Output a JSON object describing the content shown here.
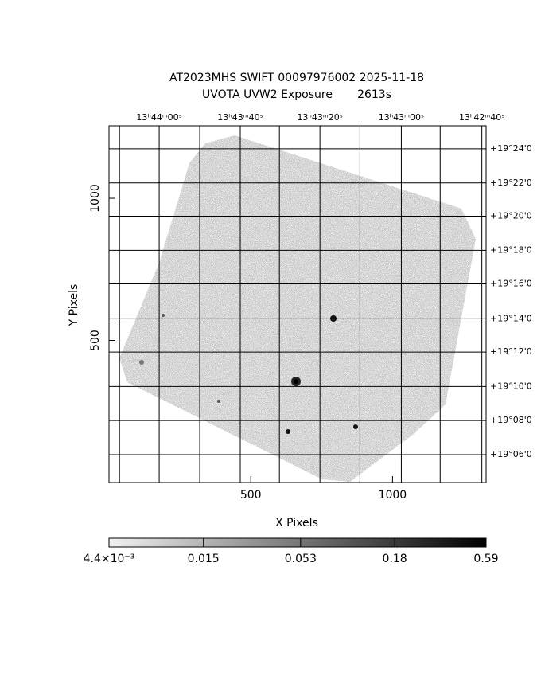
{
  "chart_data": {
    "type": "image",
    "title": "AT2023MHS SWIFT 00097976002 2025-11-18",
    "subtitle": "UVOTA UVW2 Exposure       2613s",
    "x_label": "X Pixels",
    "y_label": "Y Pixels",
    "xlim": [
      0,
      1330
    ],
    "ylim": [
      0,
      1255
    ],
    "xticks": [
      500,
      1000
    ],
    "yticks": [
      500,
      1000
    ],
    "x2ticks": [
      {
        "value": 177,
        "label": "13ʰ44ᵐ00ˢ"
      },
      {
        "value": 463,
        "label": "13ʰ43ᵐ40ˢ"
      },
      {
        "value": 744,
        "label": "13ʰ43ᵐ20ˢ"
      },
      {
        "value": 1031,
        "label": "13ʰ43ᵐ00ˢ"
      },
      {
        "value": 1315,
        "label": "13ʰ42ᵐ40ˢ"
      }
    ],
    "x2grid": [
      37,
      320,
      601,
      885,
      1168
    ],
    "y2ticks": [
      {
        "value": 1174,
        "label": "+19°24'0"
      },
      {
        "value": 1054,
        "label": "+19°22'0"
      },
      {
        "value": 937,
        "label": "+19°20'0"
      },
      {
        "value": 817,
        "label": "+19°18'0"
      },
      {
        "value": 699,
        "label": "+19°16'0"
      },
      {
        "value": 576,
        "label": "+19°14'0"
      },
      {
        "value": 459,
        "label": "+19°12'0"
      },
      {
        "value": 338,
        "label": "+19°10'0"
      },
      {
        "value": 218,
        "label": "+19°08'0"
      },
      {
        "value": 98,
        "label": "+19°06'0"
      }
    ],
    "colorbar": {
      "scale": "log",
      "lim": [
        0.0044,
        0.59
      ],
      "ticks": [
        {
          "value": 0.0044,
          "label": "4.4×10⁻³"
        },
        0.015,
        0.053,
        0.18,
        0.59
      ]
    }
  }
}
